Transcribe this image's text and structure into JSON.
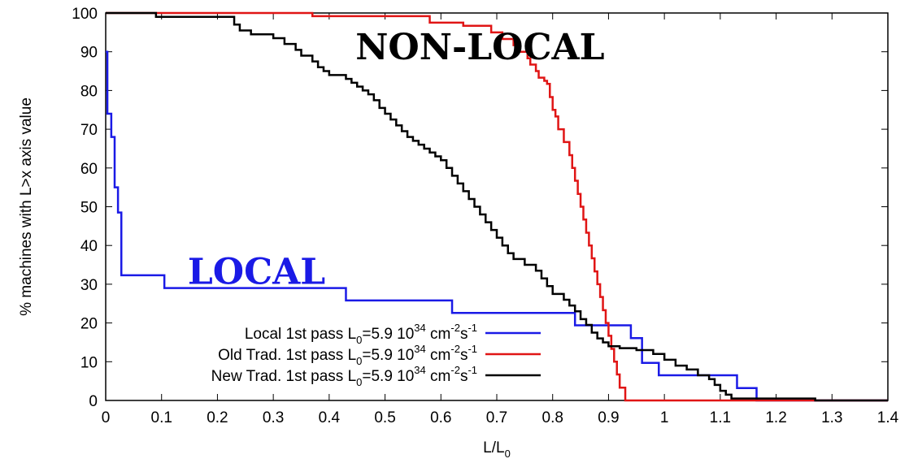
{
  "chart_data": {
    "type": "line",
    "title": "",
    "xlabel": {
      "main": "L/L",
      "sub": "0"
    },
    "ylabel": "% machines with L>x axis value",
    "xlim": [
      0,
      1.4
    ],
    "ylim": [
      0,
      100
    ],
    "xticks": [
      "0",
      "0.1",
      "0.2",
      "0.3",
      "0.4",
      "0.5",
      "0.6",
      "0.7",
      "0.8",
      "0.9",
      "1",
      "1.1",
      "1.2",
      "1.3",
      "1.4"
    ],
    "yticks": [
      "0",
      "10",
      "20",
      "30",
      "40",
      "50",
      "60",
      "70",
      "80",
      "90",
      "100"
    ],
    "grid": false,
    "legend_position": "bottom-left",
    "annotations": [
      {
        "text": "NON-LOCAL",
        "x": 0.67,
        "y": 91,
        "color": "#000000"
      },
      {
        "text": "LOCAL",
        "x": 0.27,
        "y": 33,
        "color": "#1a1ae6"
      }
    ],
    "series": [
      {
        "legend": {
          "a": "Local 1st pass L",
          "a_sub": "0",
          "b": "=5.9 10",
          "b_sup": "34",
          "c": " cm",
          "c_sup": "-2",
          "d": "s",
          "d_sup": "-1"
        },
        "color": "#1a1ae6",
        "step": true,
        "points": [
          [
            0.0,
            90
          ],
          [
            0.003,
            74
          ],
          [
            0.01,
            68
          ],
          [
            0.016,
            55
          ],
          [
            0.022,
            48.5
          ],
          [
            0.028,
            32.3
          ],
          [
            0.105,
            29
          ],
          [
            0.43,
            25.8
          ],
          [
            0.62,
            22.6
          ],
          [
            0.84,
            19.4
          ],
          [
            0.94,
            16.1
          ],
          [
            0.96,
            9.7
          ],
          [
            0.99,
            6.5
          ],
          [
            1.13,
            3.2
          ],
          [
            1.165,
            0
          ],
          [
            1.4,
            0
          ]
        ]
      },
      {
        "legend": {
          "a": "Old Trad. 1st pass L",
          "a_sub": "0",
          "b": "=5.9 10",
          "b_sup": "34",
          "c": " cm",
          "c_sup": "-2",
          "d": "s",
          "d_sup": "-1"
        },
        "color": "#e01515",
        "step": true,
        "points": [
          [
            0.0,
            100
          ],
          [
            0.37,
            99.2
          ],
          [
            0.58,
            97.5
          ],
          [
            0.64,
            96.7
          ],
          [
            0.69,
            95
          ],
          [
            0.71,
            93.3
          ],
          [
            0.73,
            91.7
          ],
          [
            0.74,
            90
          ],
          [
            0.755,
            88.3
          ],
          [
            0.76,
            86.7
          ],
          [
            0.77,
            85
          ],
          [
            0.775,
            83.3
          ],
          [
            0.785,
            82.5
          ],
          [
            0.79,
            81.7
          ],
          [
            0.795,
            78.3
          ],
          [
            0.8,
            75
          ],
          [
            0.805,
            73.3
          ],
          [
            0.81,
            70
          ],
          [
            0.82,
            66.7
          ],
          [
            0.83,
            63.3
          ],
          [
            0.835,
            60
          ],
          [
            0.84,
            56.7
          ],
          [
            0.845,
            53.3
          ],
          [
            0.85,
            50
          ],
          [
            0.855,
            46.7
          ],
          [
            0.86,
            43.3
          ],
          [
            0.865,
            40
          ],
          [
            0.87,
            36.7
          ],
          [
            0.875,
            33.3
          ],
          [
            0.88,
            30
          ],
          [
            0.885,
            26.7
          ],
          [
            0.89,
            23.3
          ],
          [
            0.895,
            20
          ],
          [
            0.9,
            16.7
          ],
          [
            0.905,
            13.3
          ],
          [
            0.91,
            10
          ],
          [
            0.915,
            6.7
          ],
          [
            0.92,
            3.3
          ],
          [
            0.93,
            0
          ],
          [
            1.4,
            0
          ]
        ]
      },
      {
        "legend": {
          "a": "New Trad. 1st pass L",
          "a_sub": "0",
          "b": "=5.9 10",
          "b_sup": "34",
          "c": " cm",
          "c_sup": "-2",
          "d": "s",
          "d_sup": "-1"
        },
        "color": "#000000",
        "step": true,
        "points": [
          [
            0.0,
            100
          ],
          [
            0.09,
            99
          ],
          [
            0.23,
            97
          ],
          [
            0.24,
            95.5
          ],
          [
            0.26,
            94.5
          ],
          [
            0.3,
            93.5
          ],
          [
            0.32,
            92
          ],
          [
            0.34,
            90.5
          ],
          [
            0.35,
            89
          ],
          [
            0.37,
            87.5
          ],
          [
            0.38,
            86
          ],
          [
            0.39,
            85
          ],
          [
            0.4,
            84
          ],
          [
            0.43,
            83
          ],
          [
            0.44,
            82
          ],
          [
            0.45,
            81
          ],
          [
            0.46,
            80
          ],
          [
            0.47,
            79
          ],
          [
            0.48,
            77.5
          ],
          [
            0.49,
            75.5
          ],
          [
            0.5,
            74
          ],
          [
            0.51,
            72.5
          ],
          [
            0.52,
            71
          ],
          [
            0.53,
            69.5
          ],
          [
            0.54,
            68
          ],
          [
            0.55,
            67
          ],
          [
            0.56,
            66
          ],
          [
            0.57,
            65
          ],
          [
            0.58,
            64
          ],
          [
            0.59,
            63
          ],
          [
            0.6,
            62
          ],
          [
            0.61,
            60
          ],
          [
            0.62,
            58
          ],
          [
            0.63,
            56
          ],
          [
            0.64,
            54
          ],
          [
            0.65,
            52
          ],
          [
            0.66,
            50
          ],
          [
            0.67,
            48
          ],
          [
            0.68,
            46
          ],
          [
            0.69,
            44
          ],
          [
            0.7,
            42
          ],
          [
            0.71,
            40
          ],
          [
            0.72,
            38
          ],
          [
            0.73,
            36.5
          ],
          [
            0.75,
            35
          ],
          [
            0.77,
            33.5
          ],
          [
            0.78,
            31.5
          ],
          [
            0.79,
            29.5
          ],
          [
            0.8,
            27.5
          ],
          [
            0.82,
            26
          ],
          [
            0.83,
            24.5
          ],
          [
            0.84,
            23
          ],
          [
            0.85,
            21
          ],
          [
            0.86,
            19.5
          ],
          [
            0.87,
            17.5
          ],
          [
            0.88,
            16
          ],
          [
            0.89,
            15
          ],
          [
            0.9,
            14
          ],
          [
            0.92,
            13.5
          ],
          [
            0.95,
            13
          ],
          [
            0.98,
            12
          ],
          [
            1.0,
            10.5
          ],
          [
            1.02,
            9
          ],
          [
            1.04,
            8
          ],
          [
            1.06,
            6.5
          ],
          [
            1.08,
            5.5
          ],
          [
            1.09,
            4
          ],
          [
            1.1,
            2.5
          ],
          [
            1.11,
            1.5
          ],
          [
            1.12,
            0.5
          ],
          [
            1.27,
            0
          ],
          [
            1.4,
            0
          ]
        ]
      }
    ]
  }
}
